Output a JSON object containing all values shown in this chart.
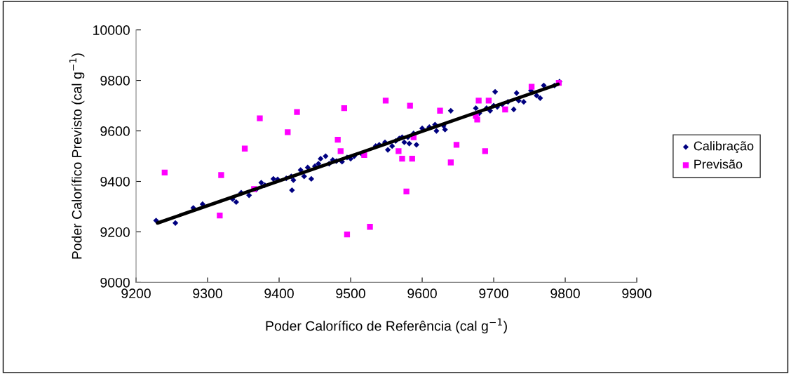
{
  "chart_data": {
    "type": "scatter",
    "xlabel": "Poder Calorífico de Referência (cal g$^{−1}$)",
    "ylabel": "Poder Calorífico Previsto (cal g$^{−1}$)",
    "xlim": [
      9200,
      9900
    ],
    "xticks": [
      9200,
      9300,
      9400,
      9500,
      9600,
      9700,
      9800,
      9900
    ],
    "ylim": [
      9000,
      10000
    ],
    "yticks": [
      9000,
      9200,
      9400,
      9600,
      9800,
      10000
    ],
    "grid": false,
    "legend": "right",
    "series": [
      {
        "name": "Calibração",
        "color": "#000080",
        "marker": "diamond",
        "x": [
          9228,
          9255,
          9280,
          9293,
          9335,
          9340,
          9347,
          9358,
          9368,
          9375,
          9380,
          9392,
          9398,
          9410,
          9417,
          9418,
          9420,
          9430,
          9435,
          9440,
          9445,
          9450,
          9455,
          9458,
          9465,
          9470,
          9475,
          9480,
          9488,
          9495,
          9500,
          9505,
          9515,
          9535,
          9540,
          9548,
          9552,
          9558,
          9563,
          9568,
          9572,
          9575,
          9580,
          9582,
          9588,
          9592,
          9600,
          9610,
          9618,
          9620,
          9630,
          9632,
          9640,
          9675,
          9680,
          9690,
          9695,
          9700,
          9702,
          9705,
          9712,
          9720,
          9728,
          9732,
          9735,
          9742,
          9752,
          9760,
          9765,
          9770,
          9785,
          9792
        ],
        "values": [
          9245,
          9235,
          9295,
          9310,
          9330,
          9318,
          9355,
          9345,
          9368,
          9395,
          9385,
          9410,
          9408,
          9412,
          9420,
          9365,
          9405,
          9445,
          9420,
          9455,
          9410,
          9460,
          9470,
          9490,
          9500,
          9470,
          9485,
          9480,
          9478,
          9495,
          9490,
          9500,
          9510,
          9540,
          9545,
          9555,
          9525,
          9540,
          9560,
          9570,
          9575,
          9555,
          9575,
          9550,
          9590,
          9545,
          9610,
          9615,
          9625,
          9600,
          9620,
          9605,
          9680,
          9690,
          9670,
          9690,
          9680,
          9700,
          9755,
          9695,
          9705,
          9715,
          9685,
          9750,
          9720,
          9715,
          9760,
          9740,
          9730,
          9780,
          9780,
          9795
        ]
      },
      {
        "name": "Previsão",
        "color": "#ff00ff",
        "marker": "square",
        "x": [
          9240,
          9319,
          9317,
          9352,
          9365,
          9373,
          9412,
          9425,
          9482,
          9486,
          9491,
          9495,
          9519,
          9527,
          9549,
          9567,
          9572,
          9578,
          9583,
          9586,
          9588,
          9625,
          9640,
          9648,
          9675,
          9677,
          9679,
          9688,
          9693,
          9716,
          9753,
          9791
        ],
        "values": [
          9435,
          9425,
          9265,
          9530,
          9370,
          9650,
          9595,
          9675,
          9565,
          9520,
          9690,
          9190,
          9505,
          9220,
          9720,
          9520,
          9490,
          9360,
          9700,
          9490,
          9575,
          9680,
          9475,
          9545,
          9660,
          9645,
          9720,
          9520,
          9720,
          9685,
          9775,
          9790
        ]
      },
      {
        "type": "line",
        "color": "#000000",
        "marker": "none",
        "x": [
          9230,
          9790
        ],
        "values": [
          9235,
          9785
        ]
      }
    ]
  }
}
